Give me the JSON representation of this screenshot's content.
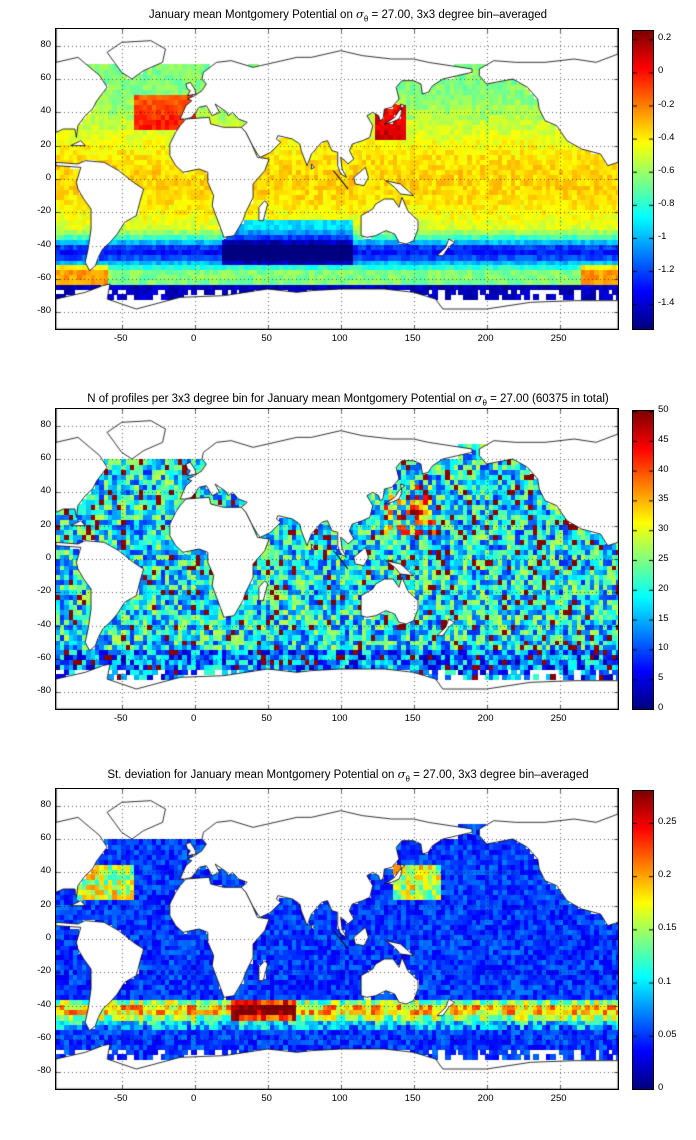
{
  "panels": [
    {
      "title_prefix": "January mean Montgomery Potential on ",
      "sigma_symbol": "σ",
      "sigma_sub": "θ",
      "title_suffix": " = 27.00, 3x3 degree bin–averaged",
      "colorbar_ticks": [
        "0.2",
        "0",
        "-0.2",
        "-0.4",
        "-0.6",
        "-0.8",
        "-1",
        "-1.2",
        "-1.4"
      ],
      "field": "montgomery_potential"
    },
    {
      "title_prefix": "N of profiles per 3x3 degree bin for January mean Montgomery Potential on ",
      "sigma_symbol": "σ",
      "sigma_sub": "θ",
      "title_suffix": " = 27.00 (60375 in total)",
      "colorbar_ticks": [
        "50",
        "45",
        "40",
        "35",
        "30",
        "25",
        "20",
        "15",
        "10",
        "5",
        "0"
      ],
      "field": "profile_count"
    },
    {
      "title_prefix": "St. deviation for January mean Montgomery Potential on ",
      "sigma_symbol": "σ",
      "sigma_sub": "θ",
      "title_suffix": " = 27.00, 3x3 degree bin–averaged",
      "colorbar_ticks": [
        "0.25",
        "0.2",
        "0.15",
        "0.1",
        "0.05",
        "0"
      ],
      "field": "standard_deviation"
    }
  ],
  "axes": {
    "x_ticks": [
      "-50",
      "0",
      "50",
      "100",
      "150",
      "200",
      "250"
    ],
    "y_ticks": [
      "80",
      "60",
      "40",
      "20",
      "0",
      "-20",
      "-40",
      "-60",
      "-80"
    ],
    "x_range": [
      -95,
      290
    ],
    "y_range": [
      -90,
      90
    ]
  },
  "colorbars": [
    {
      "min": -1.55,
      "max": 0.25,
      "colormap": "jet"
    },
    {
      "min": 0,
      "max": 50,
      "colormap": "jet"
    },
    {
      "min": 0,
      "max": 0.28,
      "colormap": "jet"
    }
  ]
}
